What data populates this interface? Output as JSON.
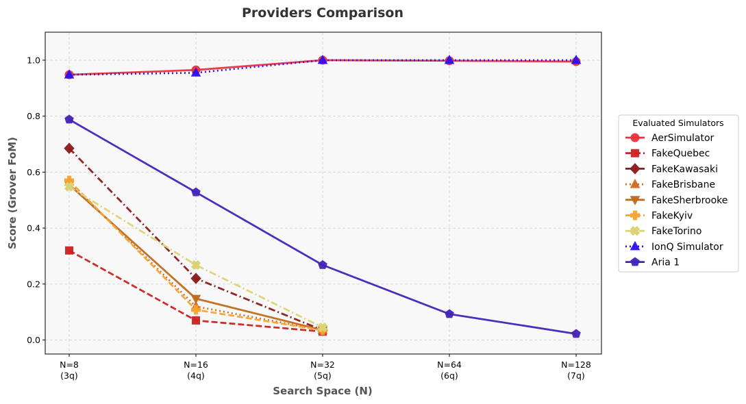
{
  "chart_data": {
    "type": "line",
    "title": "Providers Comparison",
    "xlabel": "Search Space (N)",
    "ylabel": "Score (Grover FoM)",
    "categories": [
      "N=8\n(3q)",
      "N=16\n(4q)",
      "N=32\n(5q)",
      "N=64\n(6q)",
      "N=128\n(7q)"
    ],
    "ylim": [
      -0.05,
      1.1
    ],
    "yticks": [
      0.0,
      0.2,
      0.4,
      0.6,
      0.8,
      1.0
    ],
    "ytick_labels": [
      "0.0",
      "0.2",
      "0.4",
      "0.6",
      "0.8",
      "1.0"
    ],
    "grid": true,
    "legend_title": "Evaluated Simulators",
    "legend_position": "right",
    "series": [
      {
        "name": "AerSimulator",
        "values": [
          0.948,
          0.965,
          1.0,
          0.998,
          0.995
        ],
        "color": "#e8333f",
        "dash": "solid",
        "marker": "circle"
      },
      {
        "name": "FakeQuebec",
        "values": [
          0.32,
          0.07,
          0.03,
          null,
          null
        ],
        "color": "#cc2222",
        "dash": "dashed",
        "marker": "square"
      },
      {
        "name": "FakeKawasaki",
        "values": [
          0.685,
          0.22,
          0.035,
          null,
          null
        ],
        "color": "#8b1a1a",
        "dash": "dashdot",
        "marker": "diamond"
      },
      {
        "name": "FakeBrisbane",
        "values": [
          0.565,
          0.12,
          0.035,
          null,
          null
        ],
        "color": "#d2691e",
        "dash": "dotted",
        "marker": "triangle-up"
      },
      {
        "name": "FakeSherbrooke",
        "values": [
          0.555,
          0.148,
          0.035,
          null,
          null
        ],
        "color": "#c06a1e",
        "dash": "solid",
        "marker": "triangle-down"
      },
      {
        "name": "FakeKyiv",
        "values": [
          0.57,
          0.108,
          0.035,
          null,
          null
        ],
        "color": "#f6a431",
        "dash": "dashed",
        "marker": "plus"
      },
      {
        "name": "FakeTorino",
        "values": [
          0.548,
          0.268,
          0.045,
          null,
          null
        ],
        "color": "#dcd474",
        "dash": "dashdot",
        "marker": "x"
      },
      {
        "name": "IonQ Simulator",
        "values": [
          0.948,
          0.955,
          1.0,
          1.0,
          1.0
        ],
        "color": "#2d10f0",
        "dash": "dotted",
        "marker": "triangle-up"
      },
      {
        "name": "Aria 1",
        "values": [
          0.788,
          0.528,
          0.268,
          0.093,
          0.022
        ],
        "color": "#4322b8",
        "dash": "solid",
        "marker": "pentagon"
      }
    ]
  }
}
